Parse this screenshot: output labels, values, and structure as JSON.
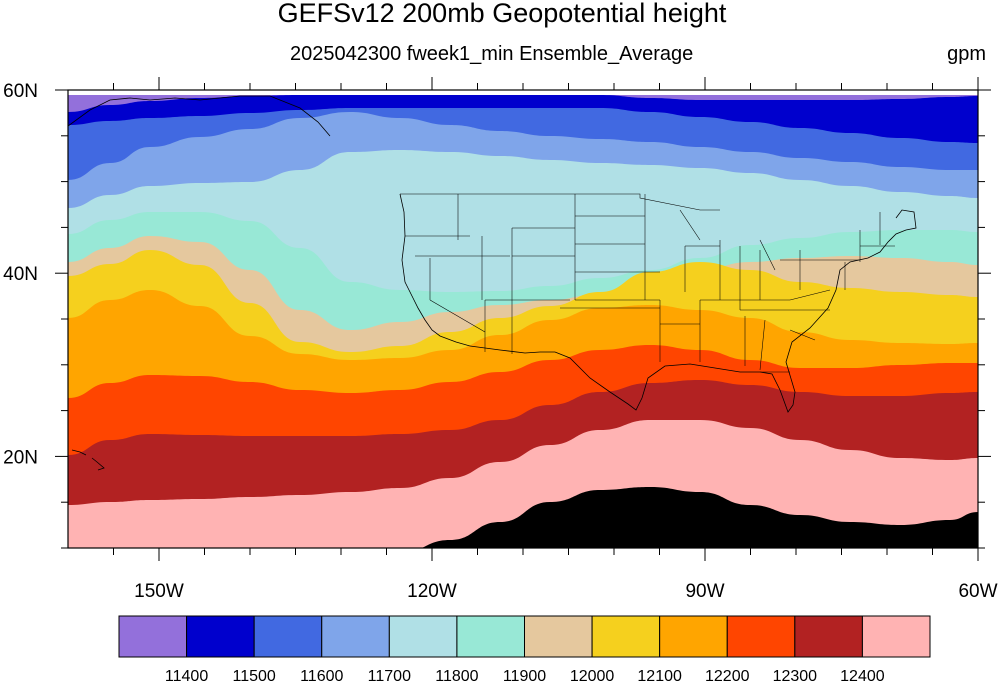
{
  "title": "GEFSv12 200mb Geopotential height",
  "subtitle": "2025042300 fweek1_min Ensemble_Average",
  "units": "gpm",
  "map": {
    "lon_range": [
      -160,
      -60
    ],
    "lat_range": [
      10,
      60
    ],
    "lat_ticks": [
      {
        "value": 60,
        "label": "60N"
      },
      {
        "value": 40,
        "label": "40N"
      },
      {
        "value": 20,
        "label": "20N"
      }
    ],
    "lon_ticks": [
      {
        "value": -150,
        "label": "150W"
      },
      {
        "value": -120,
        "label": "120W"
      },
      {
        "value": -90,
        "label": "90W"
      },
      {
        "value": -60,
        "label": "60W"
      }
    ],
    "boundaries": [
      "coastlines",
      "us-state-borders"
    ]
  },
  "legend": {
    "levels": [
      11400,
      11500,
      11600,
      11700,
      11800,
      11900,
      12000,
      12100,
      12200,
      12300,
      12400
    ],
    "colors": [
      "#9370DB",
      "#0000CD",
      "#4169E1",
      "#7FA5EA",
      "#B0E0E6",
      "#98E8D6",
      "#E5C89E",
      "#F5D01E",
      "#FFA500",
      "#FF4500",
      "#B22222",
      "#FFB3B3"
    ]
  }
}
